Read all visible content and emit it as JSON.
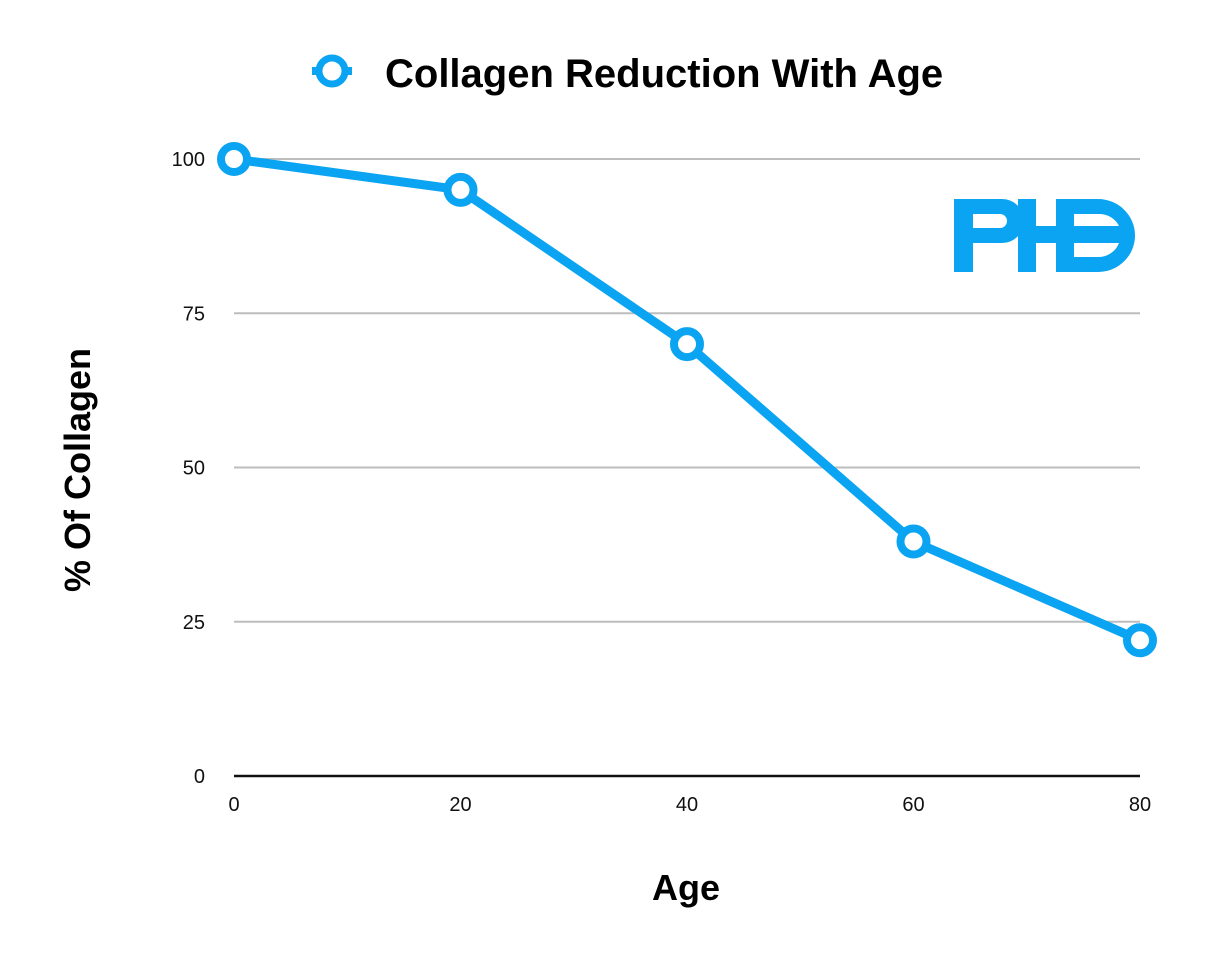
{
  "chart_data": {
    "type": "line",
    "title": "",
    "xlabel": "Age",
    "ylabel": "% Of Collagen",
    "x": [
      0,
      20,
      40,
      60,
      80
    ],
    "series": [
      {
        "name": "Collagen Reduction With Age",
        "values": [
          100,
          95,
          70,
          38,
          22
        ]
      }
    ],
    "xlim": [
      0,
      80
    ],
    "ylim": [
      0,
      100
    ],
    "xticks": [
      "0",
      "20",
      "40",
      "60",
      "80"
    ],
    "yticks": [
      "0",
      "25",
      "50",
      "75",
      "100"
    ],
    "grid": "horizontal",
    "legend": "top-center"
  },
  "colors": {
    "series": "#0aa4f2",
    "grid": "#bdbdbd",
    "axis": "#111111"
  },
  "logo": {
    "text": "PHD",
    "color": "#0aa4f2"
  }
}
